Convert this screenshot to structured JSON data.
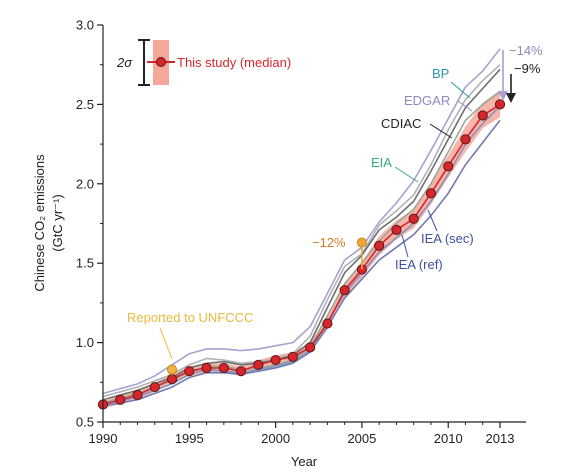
{
  "chart_data": {
    "type": "line",
    "xlabel": "Year",
    "ylabel": "Chinese CO₂ emissions",
    "ylabel_units": "(GtC yr⁻¹)",
    "xlim": [
      1990,
      2013
    ],
    "ylim": [
      0.5,
      3.0
    ],
    "x_ticks": [
      1990,
      1995,
      2000,
      2005,
      2010,
      2013
    ],
    "y_ticks": [
      0.5,
      1.0,
      1.5,
      2.0,
      2.5,
      3.0
    ],
    "y_tick_labels": [
      "0.5",
      "1.0",
      "1.5",
      "2.0",
      "2.5",
      "3.0"
    ],
    "legend": {
      "sigma_label": "2σ",
      "entry_label": "This study (median)",
      "placement": "top-left"
    },
    "series": [
      {
        "name": "EDGAR",
        "color": "#a7a2cf",
        "x": [
          1990,
          1991,
          1992,
          1993,
          1994,
          1995,
          1996,
          1997,
          1998,
          1999,
          2000,
          2001,
          2002,
          2003,
          2004,
          2005,
          2006,
          2007,
          2008,
          2009,
          2010,
          2011,
          2012,
          2013
        ],
        "values": [
          0.68,
          0.71,
          0.74,
          0.79,
          0.86,
          0.93,
          0.96,
          0.96,
          0.95,
          0.96,
          0.98,
          1.0,
          1.1,
          1.31,
          1.52,
          1.6,
          1.76,
          1.88,
          2.02,
          2.21,
          2.41,
          2.61,
          2.71,
          2.85
        ]
      },
      {
        "name": "BP",
        "color": "#b0b3b6",
        "x": [
          1990,
          1991,
          1992,
          1993,
          1994,
          1995,
          1996,
          1997,
          1998,
          1999,
          2000,
          2001,
          2002,
          2003,
          2004,
          2005,
          2006,
          2007,
          2008,
          2009,
          2010,
          2011,
          2012,
          2013
        ],
        "values": [
          0.66,
          0.69,
          0.72,
          0.76,
          0.8,
          0.86,
          0.9,
          0.89,
          0.87,
          0.88,
          0.9,
          0.93,
          1.04,
          1.27,
          1.48,
          1.56,
          1.74,
          1.83,
          1.93,
          2.12,
          2.34,
          2.53,
          2.65,
          2.75
        ]
      },
      {
        "name": "CDIAC",
        "color": "#6d6e71",
        "x": [
          1990,
          1991,
          1992,
          1993,
          1994,
          1995,
          1996,
          1997,
          1998,
          1999,
          2000,
          2001,
          2002,
          2003,
          2004,
          2005,
          2006,
          2007,
          2008,
          2009,
          2010,
          2011,
          2012,
          2013
        ],
        "values": [
          0.64,
          0.67,
          0.7,
          0.74,
          0.78,
          0.84,
          0.87,
          0.88,
          0.86,
          0.87,
          0.89,
          0.92,
          1.0,
          1.22,
          1.44,
          1.55,
          1.71,
          1.79,
          1.89,
          2.08,
          2.28,
          2.48,
          2.6,
          2.72
        ]
      },
      {
        "name": "EIA",
        "color": "#9aa89a",
        "x": [
          1990,
          1991,
          1992,
          1993,
          1994,
          1995,
          1996,
          1997,
          1998,
          1999,
          2000,
          2001,
          2002,
          2003,
          2004,
          2005,
          2006,
          2007,
          2008,
          2009,
          2010,
          2011,
          2012,
          2013
        ],
        "values": [
          0.62,
          0.65,
          0.68,
          0.72,
          0.76,
          0.82,
          0.85,
          0.85,
          0.83,
          0.84,
          0.86,
          0.89,
          0.97,
          1.17,
          1.37,
          1.5,
          1.64,
          1.75,
          1.84,
          2.0,
          2.2,
          2.4,
          2.5,
          2.58
        ]
      },
      {
        "name": "IEA (sec)",
        "color": "#6f7bb3",
        "x": [
          1990,
          1991,
          1992,
          1993,
          1994,
          1995,
          1996,
          1997,
          1998,
          1999,
          2000,
          2001,
          2002,
          2003,
          2004,
          2005,
          2006,
          2007,
          2008,
          2009,
          2010,
          2011,
          2012,
          2013
        ],
        "values": [
          0.6,
          0.62,
          0.64,
          0.68,
          0.72,
          0.78,
          0.81,
          0.81,
          0.8,
          0.82,
          0.84,
          0.87,
          0.94,
          1.1,
          1.28,
          1.4,
          1.52,
          1.6,
          1.68,
          1.8,
          1.94,
          2.12,
          2.26,
          2.4
        ]
      },
      {
        "name": "IEA (ref)",
        "color": "#8a8fb8",
        "x": [
          1990,
          1991,
          1992,
          1993,
          1994,
          1995,
          1996,
          1997,
          1998,
          1999,
          2000,
          2001,
          2002,
          2003,
          2004,
          2005,
          2006,
          2007,
          2008,
          2009,
          2010,
          2011,
          2012,
          2013
        ],
        "values": [
          0.6,
          0.63,
          0.66,
          0.7,
          0.74,
          0.8,
          0.83,
          0.82,
          0.81,
          0.83,
          0.85,
          0.88,
          0.95,
          1.13,
          1.31,
          1.44,
          1.57,
          1.66,
          1.75,
          1.89,
          2.06,
          2.25,
          2.38,
          2.49
        ]
      },
      {
        "name": "This study (median)",
        "color": "#d7262b",
        "band_color": "#f4a89a",
        "x": [
          1990,
          1991,
          1992,
          1993,
          1994,
          1995,
          1996,
          1997,
          1998,
          1999,
          2000,
          2001,
          2002,
          2003,
          2004,
          2005,
          2006,
          2007,
          2008,
          2009,
          2010,
          2011,
          2012,
          2013
        ],
        "values": [
          0.61,
          0.64,
          0.67,
          0.72,
          0.77,
          0.82,
          0.84,
          0.84,
          0.82,
          0.86,
          0.89,
          0.91,
          0.97,
          1.12,
          1.33,
          1.46,
          1.61,
          1.71,
          1.78,
          1.94,
          2.11,
          2.28,
          2.43,
          2.5
        ],
        "band_lower": [
          0.59,
          0.61,
          0.64,
          0.69,
          0.74,
          0.79,
          0.81,
          0.81,
          0.79,
          0.83,
          0.86,
          0.88,
          0.94,
          1.08,
          1.28,
          1.41,
          1.55,
          1.65,
          1.72,
          1.87,
          2.04,
          2.2,
          2.35,
          2.42
        ],
        "band_upper": [
          0.63,
          0.67,
          0.7,
          0.75,
          0.8,
          0.85,
          0.87,
          0.87,
          0.85,
          0.89,
          0.92,
          0.94,
          1.0,
          1.16,
          1.38,
          1.51,
          1.67,
          1.77,
          1.84,
          2.01,
          2.18,
          2.36,
          2.51,
          2.59
        ]
      }
    ],
    "points": [
      {
        "label": "Reported to UNFCCC",
        "x": 1994,
        "y": 0.83,
        "color": "#efb43f"
      },
      {
        "label": "−12%",
        "x": 2005,
        "y": 1.63,
        "color": "#efa53a"
      }
    ],
    "annotations": [
      {
        "text": "EDGAR",
        "color": "#8f88c0"
      },
      {
        "text": "BP",
        "color": "#2b96b3"
      },
      {
        "text": "CDIAC",
        "color": "#222222"
      },
      {
        "text": "EIA",
        "color": "#3aad7a"
      },
      {
        "text": "IEA (sec)",
        "color": "#3f4f9c"
      },
      {
        "text": "IEA (ref)",
        "color": "#3f4f9c"
      },
      {
        "text": "Reported to UNFCCC",
        "color": "#e9b93c"
      },
      {
        "text": "−12%",
        "color": "#d67a28"
      },
      {
        "text": "−14%",
        "color": "#8f88c0"
      },
      {
        "text": "−9%",
        "color": "#222222"
      }
    ]
  }
}
